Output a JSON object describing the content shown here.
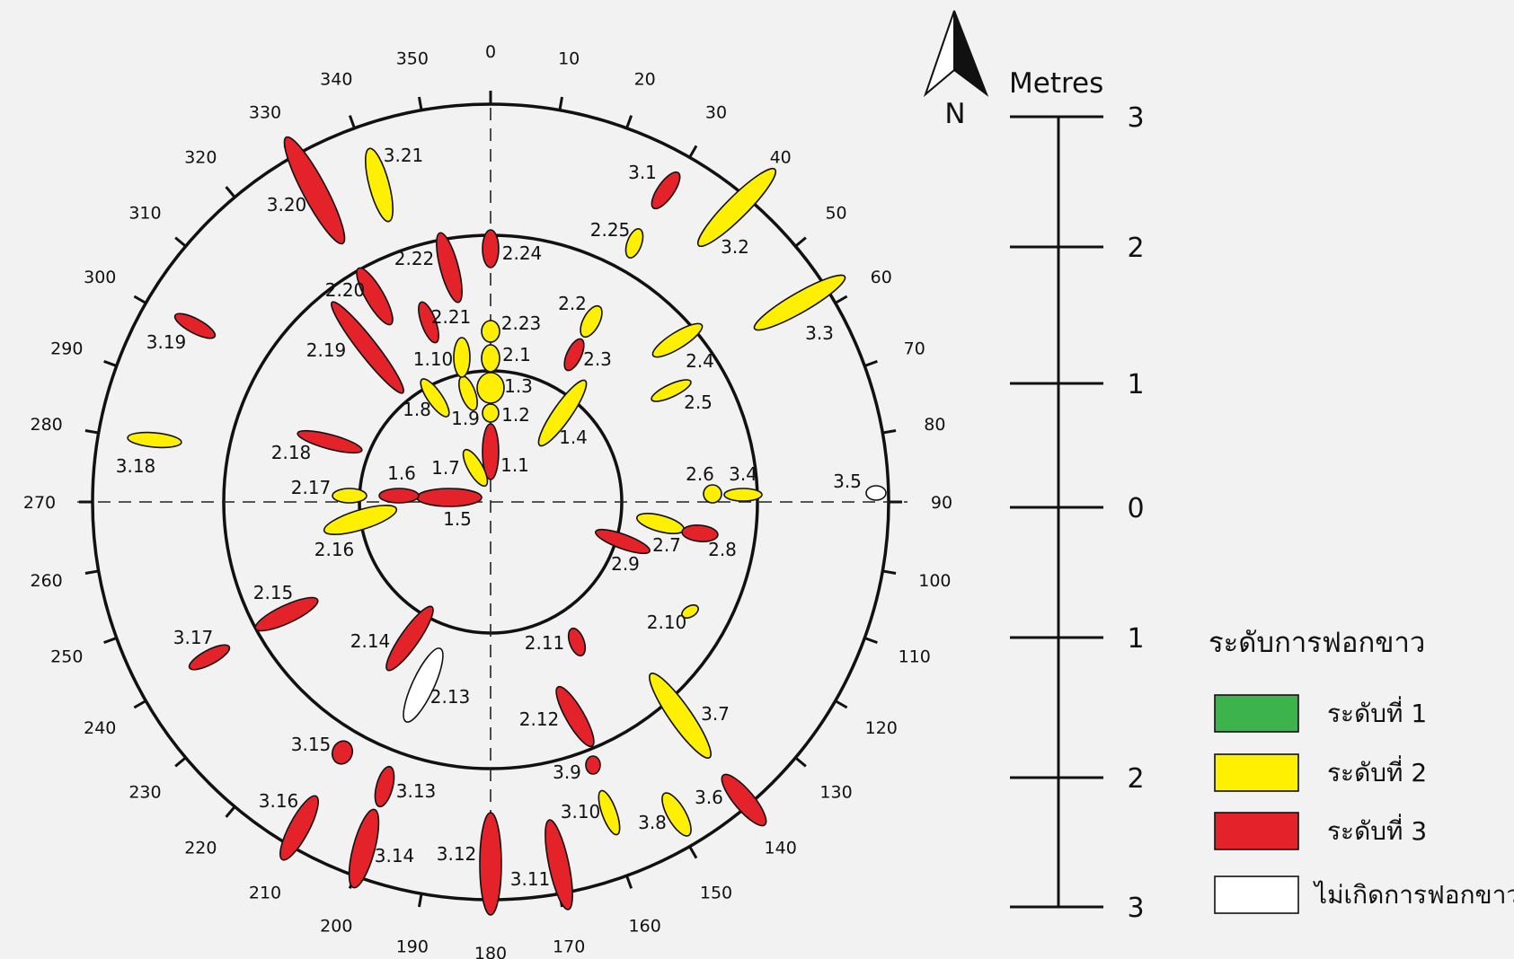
{
  "colors": {
    "background": "#f2f2f2",
    "level_1": "#3cb44b",
    "level_2": "#ffef00",
    "level_3": "#e3222a",
    "no_bleach": "#ffffff",
    "stroke": "#111111"
  },
  "degree_labels": [
    "0",
    "10",
    "20",
    "30",
    "40",
    "50",
    "60",
    "70",
    "80",
    "90",
    "100",
    "110",
    "120",
    "130",
    "140",
    "150",
    "160",
    "170",
    "180",
    "190",
    "200",
    "210",
    "220",
    "230",
    "240",
    "250",
    "260",
    "270",
    "280",
    "290",
    "300",
    "310",
    "320",
    "330",
    "340",
    "350"
  ],
  "north_label": "N",
  "scale": {
    "title": "Metres",
    "ticks": [
      "3",
      "2",
      "1",
      "0",
      "1",
      "2",
      "3"
    ]
  },
  "legend": {
    "title": "ระดับการฟอกขาว",
    "items": [
      {
        "label": "ระดับที่ 1",
        "level": 1
      },
      {
        "label": "ระดับที่ 2",
        "level": 2
      },
      {
        "label": "ระดับที่ 3",
        "level": 3
      },
      {
        "label": "ไม่เกิดการฟอกขาว",
        "level": 0
      }
    ]
  },
  "colonies": [
    {
      "id": "1.1",
      "level": 3
    },
    {
      "id": "1.2",
      "level": 2
    },
    {
      "id": "1.3",
      "level": 2
    },
    {
      "id": "1.4",
      "level": 2
    },
    {
      "id": "1.5",
      "level": 3
    },
    {
      "id": "1.6",
      "level": 3
    },
    {
      "id": "1.7",
      "level": 2
    },
    {
      "id": "1.8",
      "level": 2
    },
    {
      "id": "1.9",
      "level": 2
    },
    {
      "id": "1.10",
      "level": 2
    },
    {
      "id": "2.1",
      "level": 2
    },
    {
      "id": "2.2",
      "level": 2
    },
    {
      "id": "2.3",
      "level": 3
    },
    {
      "id": "2.4",
      "level": 2
    },
    {
      "id": "2.5",
      "level": 2
    },
    {
      "id": "2.6",
      "level": 2
    },
    {
      "id": "2.7",
      "level": 2
    },
    {
      "id": "2.8",
      "level": 3
    },
    {
      "id": "2.9",
      "level": 3
    },
    {
      "id": "2.10",
      "level": 2
    },
    {
      "id": "2.11",
      "level": 3
    },
    {
      "id": "2.12",
      "level": 3
    },
    {
      "id": "2.13",
      "level": 0
    },
    {
      "id": "2.14",
      "level": 3
    },
    {
      "id": "2.15",
      "level": 3
    },
    {
      "id": "2.16",
      "level": 2
    },
    {
      "id": "2.17",
      "level": 2
    },
    {
      "id": "2.18",
      "level": 3
    },
    {
      "id": "2.19",
      "level": 3
    },
    {
      "id": "2.20",
      "level": 3
    },
    {
      "id": "2.21",
      "level": 3
    },
    {
      "id": "2.22",
      "level": 3
    },
    {
      "id": "2.23",
      "level": 2
    },
    {
      "id": "2.24",
      "level": 3
    },
    {
      "id": "2.25",
      "level": 2
    },
    {
      "id": "3.1",
      "level": 3
    },
    {
      "id": "3.2",
      "level": 2
    },
    {
      "id": "3.3",
      "level": 2
    },
    {
      "id": "3.4",
      "level": 2
    },
    {
      "id": "3.5",
      "level": 0
    },
    {
      "id": "3.6",
      "level": 3
    },
    {
      "id": "3.7",
      "level": 2
    },
    {
      "id": "3.8",
      "level": 2
    },
    {
      "id": "3.9",
      "level": 3
    },
    {
      "id": "3.10",
      "level": 2
    },
    {
      "id": "3.11",
      "level": 3
    },
    {
      "id": "3.12",
      "level": 3
    },
    {
      "id": "3.13",
      "level": 3
    },
    {
      "id": "3.14",
      "level": 3
    },
    {
      "id": "3.15",
      "level": 3
    },
    {
      "id": "3.16",
      "level": 3
    },
    {
      "id": "3.17",
      "level": 3
    },
    {
      "id": "3.18",
      "level": 2
    },
    {
      "id": "3.19",
      "level": 3
    },
    {
      "id": "3.20",
      "level": 3
    },
    {
      "id": "3.21",
      "level": 2
    }
  ]
}
